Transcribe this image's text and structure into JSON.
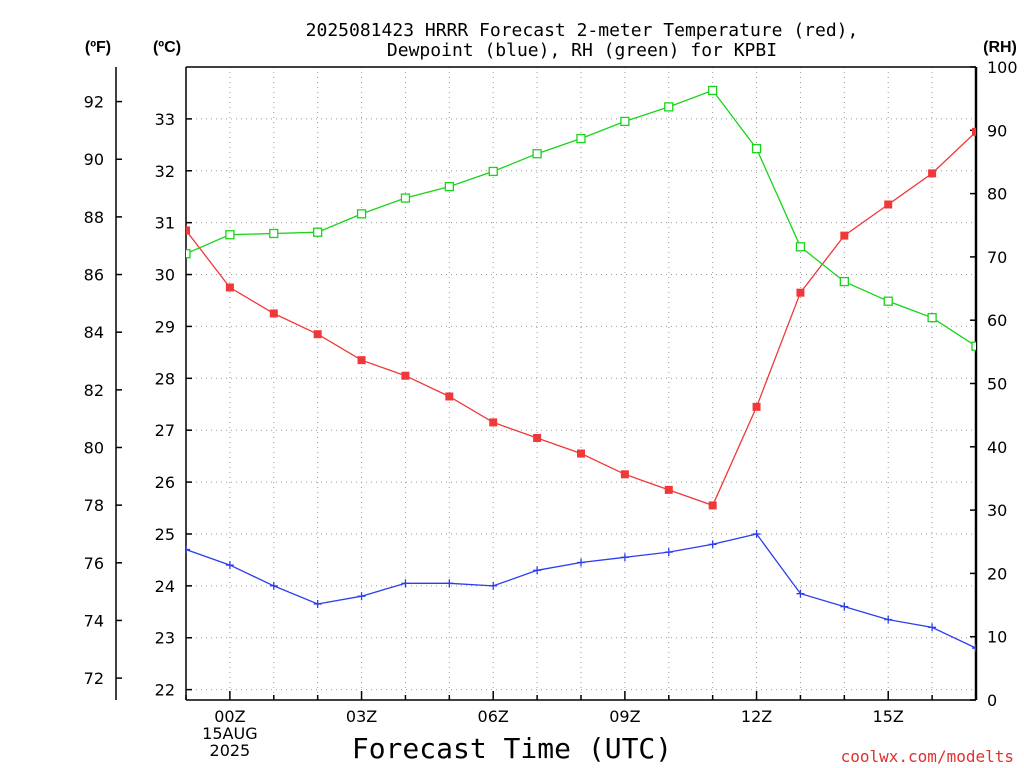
{
  "chart_data": {
    "type": "line",
    "title_line1": "2025081423 HRRR Forecast 2-meter Temperature (red),",
    "title_line2": "Dewpoint (blue), RH (green) for KPBI",
    "xlabel": "Forecast Time (UTC)",
    "unit_f": "(ºF)",
    "unit_c": "(ºC)",
    "unit_rh": "(RH)",
    "watermark": "coolwx.com/modelts",
    "x_hours": [
      -1,
      0,
      1,
      2,
      3,
      4,
      5,
      6,
      7,
      8,
      9,
      10,
      11,
      12,
      13,
      14,
      15,
      16,
      17
    ],
    "x_tick_labels": [
      {
        "hour": 0,
        "lines": [
          "00Z",
          "15AUG",
          "2025"
        ]
      },
      {
        "hour": 3,
        "lines": [
          "03Z"
        ]
      },
      {
        "hour": 6,
        "lines": [
          "06Z"
        ]
      },
      {
        "hour": 9,
        "lines": [
          "09Z"
        ]
      },
      {
        "hour": 12,
        "lines": [
          "12Z"
        ]
      },
      {
        "hour": 15,
        "lines": [
          "15Z"
        ]
      }
    ],
    "xlim": [
      -1,
      17
    ],
    "ylim_c": [
      21.8,
      34.0
    ],
    "ylim_f": [
      71.24,
      93.2
    ],
    "ylim_rh": [
      0,
      100
    ],
    "yticks_c": [
      22,
      23,
      24,
      25,
      26,
      27,
      28,
      29,
      30,
      31,
      32,
      33
    ],
    "yticks_f": [
      72,
      74,
      76,
      78,
      80,
      82,
      84,
      86,
      88,
      90,
      92
    ],
    "yticks_rh": [
      0,
      10,
      20,
      30,
      40,
      50,
      60,
      70,
      80,
      90,
      100
    ],
    "grid": true,
    "series": [
      {
        "name": "Temperature",
        "axis": "c",
        "color": "#f03838",
        "marker": "filled-square",
        "values": [
          30.85,
          29.75,
          29.25,
          28.85,
          28.35,
          28.05,
          27.65,
          27.15,
          26.85,
          26.55,
          26.15,
          25.85,
          25.55,
          27.45,
          29.65,
          30.75,
          31.35,
          31.95,
          32.75
        ]
      },
      {
        "name": "Dewpoint",
        "axis": "c",
        "color": "#2c3cf0",
        "marker": "plus",
        "values": [
          24.7,
          24.4,
          24.0,
          23.65,
          23.8,
          24.05,
          24.05,
          24.0,
          24.3,
          24.45,
          24.55,
          24.65,
          24.8,
          25.0,
          23.85,
          23.6,
          23.35,
          23.2,
          22.8
        ]
      },
      {
        "name": "RH",
        "axis": "rh",
        "color": "#18d418",
        "marker": "open-square",
        "values": [
          70.5,
          73.5,
          73.7,
          73.9,
          76.8,
          79.3,
          81.1,
          83.5,
          86.3,
          88.7,
          91.4,
          93.7,
          96.3,
          87.1,
          71.6,
          66.1,
          63.0,
          60.4,
          55.9
        ]
      }
    ]
  }
}
